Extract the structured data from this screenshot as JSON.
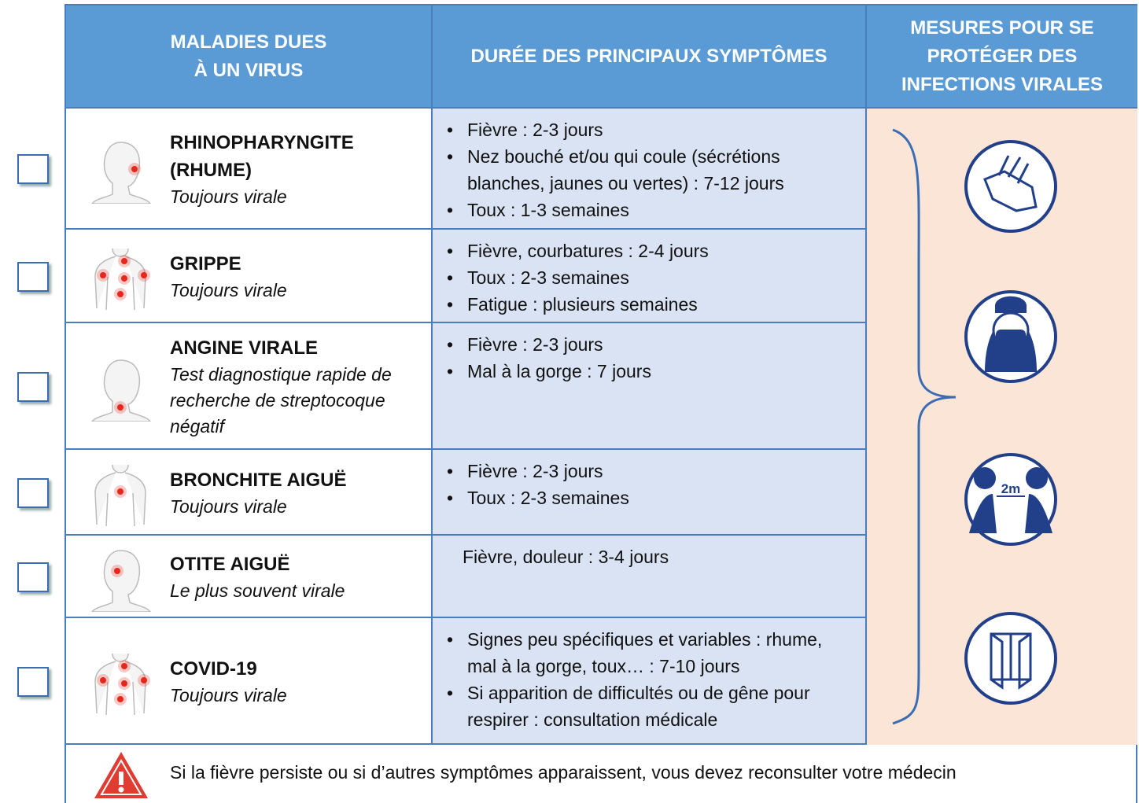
{
  "header": {
    "columns": [
      "MALADIES DUES\nÀ UN VIRUS",
      "DURÉE DES PRINCIPAUX SYMPTÔMES",
      "MESURES POUR SE\nPROTÉGER DES\nINFECTIONS VIRALES"
    ]
  },
  "rows": [
    {
      "name": "RHINOPHARYNGITE (RHUME)",
      "note": "Toujours virale",
      "symptoms": [
        "Fièvre : 2-3 jours",
        "Nez bouché et/ou qui coule (sécrétions blanches, jaunes ou vertes) : 7-12 jours",
        "Toux : 1-3 semaines"
      ]
    },
    {
      "name": "GRIPPE",
      "note": "Toujours virale",
      "symptoms": [
        "Fièvre, courbatures : 2-4 jours",
        "Toux : 2-3 semaines",
        "Fatigue : plusieurs semaines"
      ]
    },
    {
      "name": "ANGINE VIRALE",
      "note": "Test diagnostique rapide de recherche de streptocoque négatif",
      "symptoms": [
        "Fièvre : 2-3 jours",
        "Mal à la gorge : 7 jours"
      ]
    },
    {
      "name": "BRONCHITE AIGUË",
      "note": "Toujours virale",
      "symptoms": [
        "Fièvre : 2-3 jours",
        "Toux : 2-3 semaines"
      ]
    },
    {
      "name": "OTITE AIGUË",
      "note": "Le plus souvent virale",
      "symptoms": "Fièvre, douleur : 3-4 jours"
    },
    {
      "name": "COVID-19",
      "note": "Toujours virale",
      "symptoms": [
        "Signes peu spécifiques et variables : rhume, mal à la gorge, toux… : 7-10 jours",
        "Si apparition de difficultés ou de gêne pour respirer : consultation médicale"
      ]
    }
  ],
  "measures": {
    "icons": [
      "2m"
    ]
  },
  "footer": {
    "warning": "Si la fièvre persiste ou si d’autres symptômes apparaissent, vous devez reconsulter votre médecin"
  }
}
